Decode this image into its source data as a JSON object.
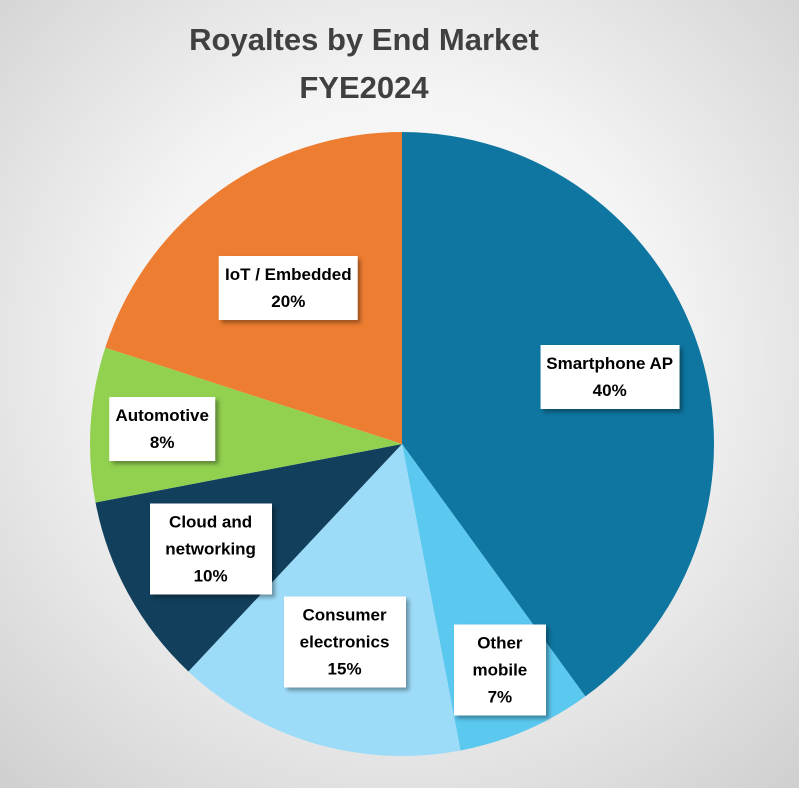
{
  "chart_data": {
    "type": "pie",
    "title": "Royaltes by End Market",
    "subtitle": "FYE2024",
    "categories": [
      "Smartphone AP",
      "Other mobile",
      "Consumer electronics",
      "Cloud and networking",
      "Automotive",
      "IoT / Embedded"
    ],
    "values": [
      40,
      7,
      15,
      10,
      8,
      20
    ],
    "value_labels": [
      "40%",
      "7%",
      "15%",
      "10%",
      "8%",
      "20%"
    ],
    "colors": [
      "#0e76a0",
      "#5bc8ef",
      "#9ddcf8",
      "#113f5c",
      "#92d050",
      "#ed7d31"
    ]
  }
}
